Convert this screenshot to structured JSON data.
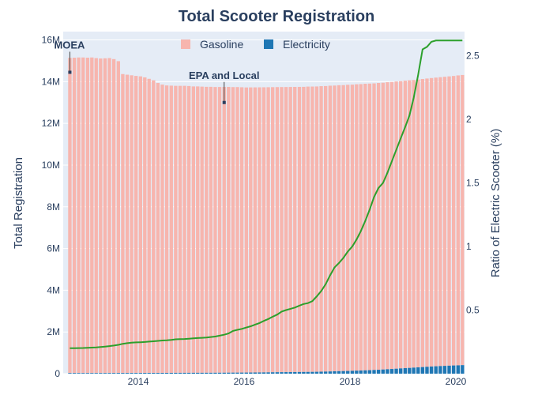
{
  "chart_data": {
    "type": "bar",
    "title": "Total Scooter Registration",
    "ylabel": "Total Registration",
    "y2label": "Ratio of Electric Scooter (%)",
    "ylim": [
      0,
      16400000
    ],
    "y2lim": [
      0,
      2.69
    ],
    "xlim": [
      "2012-08-01",
      "2020-03-01"
    ],
    "bar_mode": "stack",
    "y_ticks": [
      {
        "value": 0,
        "label": "0"
      },
      {
        "value": 2000000,
        "label": "2M"
      },
      {
        "value": 4000000,
        "label": "4M"
      },
      {
        "value": 6000000,
        "label": "6M"
      },
      {
        "value": 8000000,
        "label": "8M"
      },
      {
        "value": 10000000,
        "label": "10M"
      },
      {
        "value": 12000000,
        "label": "12M"
      },
      {
        "value": 14000000,
        "label": "14M"
      },
      {
        "value": 16000000,
        "label": "16M"
      }
    ],
    "y2_ticks": [
      {
        "value": 0.5,
        "label": "0.5"
      },
      {
        "value": 1,
        "label": "1"
      },
      {
        "value": 1.5,
        "label": "1.5"
      },
      {
        "value": 2,
        "label": "2"
      },
      {
        "value": 2.5,
        "label": "2.5"
      }
    ],
    "x_ticks": [
      {
        "value": "2014-01-01",
        "label": "2014"
      },
      {
        "value": "2016-01-01",
        "label": "2016"
      },
      {
        "value": "2018-01-01",
        "label": "2018"
      },
      {
        "value": "2020-01-01",
        "label": "2020"
      }
    ],
    "x": [
      "2012-09",
      "2012-10",
      "2012-11",
      "2012-12",
      "2013-01",
      "2013-02",
      "2013-03",
      "2013-04",
      "2013-05",
      "2013-06",
      "2013-07",
      "2013-08",
      "2013-09",
      "2013-10",
      "2013-11",
      "2013-12",
      "2014-01",
      "2014-02",
      "2014-03",
      "2014-04",
      "2014-05",
      "2014-06",
      "2014-07",
      "2014-08",
      "2014-09",
      "2014-10",
      "2014-11",
      "2014-12",
      "2015-01",
      "2015-02",
      "2015-03",
      "2015-04",
      "2015-05",
      "2015-06",
      "2015-07",
      "2015-08",
      "2015-09",
      "2015-10",
      "2015-11",
      "2015-12",
      "2016-01",
      "2016-02",
      "2016-03",
      "2016-04",
      "2016-05",
      "2016-06",
      "2016-07",
      "2016-08",
      "2016-09",
      "2016-10",
      "2016-11",
      "2016-12",
      "2017-01",
      "2017-02",
      "2017-03",
      "2017-04",
      "2017-05",
      "2017-06",
      "2017-07",
      "2017-08",
      "2017-09",
      "2017-10",
      "2017-11",
      "2017-12",
      "2018-01",
      "2018-02",
      "2018-03",
      "2018-04",
      "2018-05",
      "2018-06",
      "2018-07",
      "2018-08",
      "2018-09",
      "2018-10",
      "2018-11",
      "2018-12",
      "2019-01",
      "2019-02",
      "2019-03",
      "2019-04",
      "2019-05",
      "2019-06",
      "2019-07",
      "2019-08",
      "2019-09",
      "2019-10",
      "2019-11",
      "2019-12",
      "2020-01",
      "2020-02"
    ],
    "series": [
      {
        "name": "Gasoline",
        "kind": "bar",
        "axis": "y",
        "color": "#f7b5ae",
        "values": [
          15110000,
          15120000,
          15130000,
          15130000,
          15120000,
          15130000,
          15100000,
          15080000,
          15090000,
          15100000,
          15050000,
          14950000,
          14330000,
          14300000,
          14270000,
          14240000,
          14220000,
          14170000,
          14100000,
          14030000,
          13900000,
          13820000,
          13780000,
          13770000,
          13760000,
          13760000,
          13760000,
          13750000,
          13730000,
          13730000,
          13720000,
          13710000,
          13710000,
          13700000,
          13700000,
          13700000,
          13700000,
          13690000,
          13690000,
          13680000,
          13670000,
          13670000,
          13670000,
          13670000,
          13670000,
          13670000,
          13670000,
          13670000,
          13670000,
          13670000,
          13670000,
          13670000,
          13670000,
          13670000,
          13680000,
          13680000,
          13680000,
          13690000,
          13690000,
          13700000,
          13700000,
          13710000,
          13710000,
          13720000,
          13720000,
          13730000,
          13730000,
          13740000,
          13740000,
          13740000,
          13750000,
          13750000,
          13760000,
          13760000,
          13770000,
          13770000,
          13780000,
          13790000,
          13790000,
          13800000,
          13810000,
          13820000,
          13830000,
          13840000,
          13850000,
          13860000,
          13870000,
          13880000,
          13900000,
          13910000
        ]
      },
      {
        "name": "Electricity",
        "kind": "bar",
        "axis": "y",
        "color": "#1f77b4",
        "values": [
          30000,
          30000,
          30000,
          30000,
          30000,
          30000,
          30000,
          31000,
          31000,
          32000,
          32000,
          33000,
          34000,
          34000,
          35000,
          35000,
          35000,
          36000,
          36000,
          36000,
          37000,
          38000,
          38000,
          39000,
          40000,
          40000,
          41000,
          41000,
          42000,
          42000,
          42000,
          43000,
          43000,
          44000,
          45000,
          46000,
          48000,
          50000,
          51000,
          52000,
          53000,
          55000,
          57000,
          59000,
          61000,
          64000,
          67000,
          70000,
          72000,
          74000,
          76000,
          78000,
          80000,
          82000,
          84000,
          86000,
          90000,
          95000,
          100000,
          107000,
          114000,
          120000,
          125000,
          130000,
          137000,
          145000,
          152000,
          160000,
          168000,
          177000,
          187000,
          200000,
          213000,
          225000,
          238000,
          252000,
          265000,
          276000,
          290000,
          303000,
          316000,
          330000,
          343000,
          355000,
          365000,
          374000,
          383000,
          393000,
          400000,
          410000
        ]
      },
      {
        "name": "Ratio",
        "kind": "line",
        "axis": "y2",
        "color": "#2ca02c",
        "values": [
          0.2,
          0.2,
          0.201,
          0.202,
          0.204,
          0.205,
          0.207,
          0.21,
          0.213,
          0.217,
          0.221,
          0.227,
          0.235,
          0.24,
          0.244,
          0.246,
          0.247,
          0.249,
          0.252,
          0.255,
          0.258,
          0.261,
          0.263,
          0.266,
          0.27,
          0.272,
          0.273,
          0.275,
          0.278,
          0.28,
          0.282,
          0.284,
          0.288,
          0.292,
          0.299,
          0.306,
          0.316,
          0.336,
          0.345,
          0.352,
          0.363,
          0.373,
          0.386,
          0.398,
          0.415,
          0.43,
          0.448,
          0.465,
          0.488,
          0.5,
          0.51,
          0.52,
          0.535,
          0.548,
          0.555,
          0.57,
          0.608,
          0.65,
          0.703,
          0.773,
          0.835,
          0.87,
          0.91,
          0.96,
          1.0,
          1.055,
          1.12,
          1.2,
          1.29,
          1.39,
          1.46,
          1.5,
          1.58,
          1.67,
          1.76,
          1.85,
          1.94,
          2.03,
          2.17,
          2.35,
          2.55,
          2.57,
          2.61,
          2.62,
          2.62,
          2.62,
          2.62,
          2.62,
          2.62,
          2.62
        ]
      }
    ],
    "annotations": [
      {
        "text": "MOEA",
        "x": "2012-09",
        "y": 14450000
      },
      {
        "text": "EPA and Local",
        "x": "2015-08",
        "y": 13000000
      }
    ],
    "legend": {
      "position": "top-center",
      "items": [
        "Gasoline",
        "Electricity"
      ]
    }
  }
}
